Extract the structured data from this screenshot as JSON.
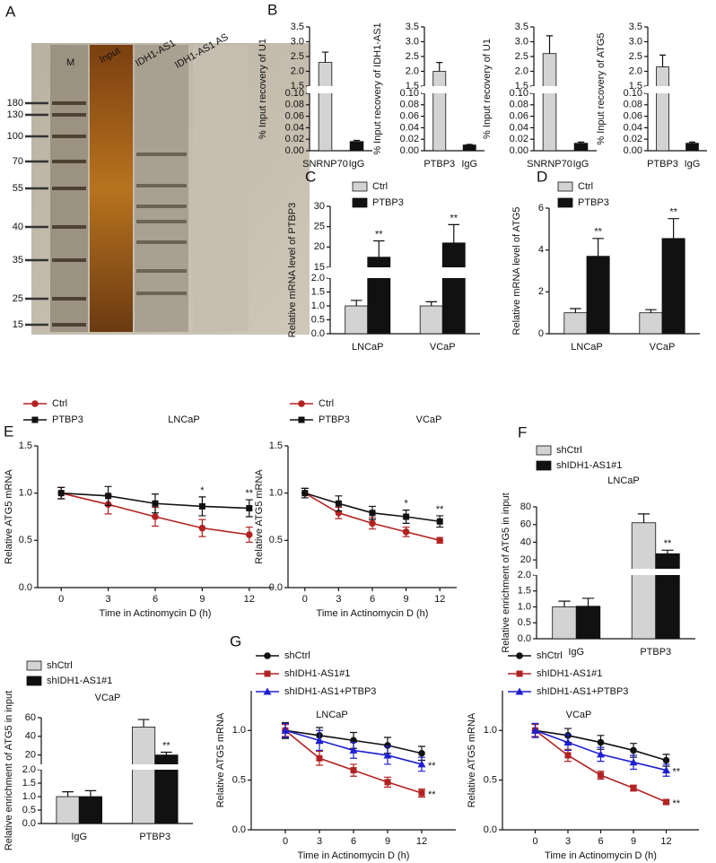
{
  "chart_data": [
    {
      "type": "gel",
      "panel": "A",
      "lanes": [
        "M",
        "Input",
        "IDH1-AS1",
        "IDH1-AS1 AS"
      ],
      "markers": [
        180,
        130,
        100,
        70,
        55,
        40,
        35,
        25,
        15
      ]
    },
    {
      "type": "bar",
      "panel": "B",
      "ylabel": "% Input recovery of U1",
      "categories": [
        "SNRNP70",
        "IgG"
      ],
      "values": [
        2.3,
        0.016
      ],
      "errors": [
        0.35,
        0.002
      ],
      "colors": [
        "#d3d3d3",
        "#111111"
      ],
      "ylim": [
        [
          0,
          0.1
        ],
        [
          1.5,
          3.5
        ]
      ],
      "yticks": [
        {
          "value": 0,
          "label": "0.00"
        },
        0.02,
        0.04,
        0.06,
        0.08,
        {
          "value": 0.1,
          "label": "0.10"
        },
        1.5,
        {
          "value": 2,
          "label": "2.0"
        },
        2.5,
        {
          "value": 3,
          "label": "3.0"
        },
        3.5
      ]
    },
    {
      "type": "bar",
      "ylabel": "% Input recovery of IDH1-AS1",
      "categories": [
        "PTBP3",
        "IgG"
      ],
      "values": [
        2.0,
        0.01
      ],
      "errors": [
        0.3,
        0.001
      ],
      "colors": [
        "#d3d3d3",
        "#111111"
      ],
      "ylim": [
        [
          0,
          0.1
        ],
        [
          1.5,
          3.5
        ]
      ],
      "yticks": [
        {
          "value": 0,
          "label": "0.00"
        },
        0.02,
        0.04,
        0.06,
        0.08,
        {
          "value": 0.1,
          "label": "0.10"
        },
        1.5,
        {
          "value": 2,
          "label": "2.0"
        },
        2.5,
        {
          "value": 3,
          "label": "3.0"
        },
        3.5
      ]
    },
    {
      "type": "bar",
      "ylabel": "% Input recovery of U1",
      "categories": [
        "SNRNP70",
        "IgG"
      ],
      "values": [
        2.6,
        0.013
      ],
      "errors": [
        0.6,
        0.002
      ],
      "colors": [
        "#d3d3d3",
        "#111111"
      ],
      "ylim": [
        [
          0,
          0.1
        ],
        [
          1.5,
          3.5
        ]
      ],
      "yticks": [
        {
          "value": 0,
          "label": "0.00"
        },
        0.02,
        0.04,
        0.06,
        0.08,
        {
          "value": 0.1,
          "label": "0.10"
        },
        1.5,
        {
          "value": 2,
          "label": "2.0"
        },
        2.5,
        {
          "value": 3,
          "label": "3.0"
        },
        3.5
      ]
    },
    {
      "type": "bar",
      "ylabel": "% Input recovery of ATG5",
      "categories": [
        "PTBP3",
        "IgG"
      ],
      "values": [
        2.15,
        0.013
      ],
      "errors": [
        0.4,
        0.002
      ],
      "colors": [
        "#d3d3d3",
        "#111111"
      ],
      "ylim": [
        [
          0,
          0.1
        ],
        [
          1.5,
          3.5
        ]
      ],
      "yticks": [
        {
          "value": 0,
          "label": "0.00"
        },
        0.02,
        0.04,
        0.06,
        0.08,
        {
          "value": 0.1,
          "label": "0.10"
        },
        1.5,
        {
          "value": 2,
          "label": "2.0"
        },
        2.5,
        {
          "value": 3,
          "label": "3.0"
        },
        3.5
      ]
    },
    {
      "type": "bar",
      "panel": "C",
      "ylabel": "Relative mRNA level of PTBP3",
      "categories": [
        "LNCaP",
        "VCaP"
      ],
      "series": [
        {
          "name": "Ctrl",
          "color": "#d3d3d3",
          "values": [
            1.0,
            1.0
          ],
          "errors": [
            0.2,
            0.15
          ]
        },
        {
          "name": "PTBP3",
          "color": "#111111",
          "values": [
            17.5,
            21
          ],
          "errors": [
            4,
            4.5
          ],
          "significance": [
            "**",
            "**"
          ]
        }
      ],
      "ylim": [
        [
          0,
          2
        ],
        [
          15,
          30
        ]
      ],
      "yticks": [
        {
          "value": 0,
          "label": "0.0"
        },
        0.5,
        {
          "value": 1,
          "label": "1.0"
        },
        1.5,
        {
          "value": 2,
          "label": "2.0"
        },
        15,
        20,
        25,
        30
      ]
    },
    {
      "type": "bar",
      "panel": "D",
      "ylabel": "Relative mRNA level of ATG5",
      "categories": [
        "LNCaP",
        "VCaP"
      ],
      "series": [
        {
          "name": "Ctrl",
          "color": "#d3d3d3",
          "values": [
            1.0,
            1.0
          ],
          "errors": [
            0.2,
            0.15
          ]
        },
        {
          "name": "PTBP3",
          "color": "#111111",
          "values": [
            3.7,
            4.55
          ],
          "errors": [
            0.85,
            0.95
          ],
          "significance": [
            "**",
            "**"
          ]
        }
      ],
      "ylim": [
        0,
        6
      ],
      "yticks": [
        0,
        2,
        4,
        6
      ]
    },
    {
      "type": "line",
      "panel": "E",
      "annotation": "LNCaP",
      "xlabel": "Time in Actinomycin D (h)",
      "ylabel": "Relative ATG5 mRNA",
      "x": [
        0,
        3,
        6,
        9,
        12
      ],
      "series": [
        {
          "name": "Ctrl",
          "color": "#b22222",
          "marker": "circle",
          "values": [
            1.0,
            0.88,
            0.75,
            0.63,
            0.56
          ],
          "errors": [
            0.06,
            0.1,
            0.1,
            0.09,
            0.08
          ]
        },
        {
          "name": "PTBP3",
          "color": "#111111",
          "marker": "square",
          "values": [
            1.0,
            0.97,
            0.89,
            0.86,
            0.84
          ],
          "errors": [
            0.06,
            0.1,
            0.1,
            0.1,
            0.09
          ],
          "significance": [
            null,
            null,
            null,
            "*",
            "**"
          ]
        }
      ],
      "xlim": [
        -1.5,
        13.5
      ],
      "xticks": [
        0,
        3,
        6,
        9,
        12
      ],
      "ylim": [
        0,
        1.5
      ],
      "yticks": [
        {
          "value": 0,
          "label": "0.0"
        },
        0.5,
        {
          "value": 1,
          "label": "1.0"
        },
        1.5
      ]
    },
    {
      "type": "line",
      "annotation": "VCaP",
      "xlabel": "Time in Actinomycin D (h)",
      "ylabel": "Relative ATG5 mRNA",
      "x": [
        0,
        3,
        6,
        9,
        12
      ],
      "series": [
        {
          "name": "Ctrl",
          "color": "#b22222",
          "marker": "circle",
          "values": [
            1.0,
            0.79,
            0.68,
            0.59,
            0.5
          ],
          "errors": [
            0.05,
            0.06,
            0.06,
            0.05,
            0.03
          ]
        },
        {
          "name": "PTBP3",
          "color": "#111111",
          "marker": "square",
          "values": [
            1.0,
            0.89,
            0.79,
            0.75,
            0.7
          ],
          "errors": [
            0.05,
            0.08,
            0.07,
            0.07,
            0.06
          ],
          "significance": [
            null,
            null,
            null,
            "*",
            "**"
          ]
        }
      ],
      "xlim": [
        -1.5,
        13.5
      ],
      "xticks": [
        0,
        3,
        6,
        9,
        12
      ],
      "ylim": [
        0,
        1.5
      ],
      "yticks": [
        {
          "value": 0,
          "label": "0.0"
        },
        0.5,
        {
          "value": 1,
          "label": "1.0"
        },
        1.5
      ]
    },
    {
      "type": "bar",
      "panel": "F",
      "annotation": "LNCaP",
      "ylabel": "Relative  enrichment of ATG5 in input",
      "categories": [
        "IgG",
        "PTBP3"
      ],
      "series": [
        {
          "name": "shCtrl",
          "color": "#d3d3d3",
          "values": [
            1.0,
            62
          ],
          "errors": [
            0.18,
            10
          ]
        },
        {
          "name": "shIDH1-AS1#1",
          "color": "#111111",
          "values": [
            1.02,
            27
          ],
          "errors": [
            0.25,
            4
          ],
          "significance": [
            null,
            "**"
          ]
        }
      ],
      "ylim": [
        [
          0,
          2
        ],
        [
          10,
          80
        ]
      ],
      "yticks": [
        {
          "value": 0,
          "label": "0.0"
        },
        0.5,
        {
          "value": 1,
          "label": "1.0"
        },
        1.5,
        {
          "value": 2,
          "label": "2.0"
        },
        20,
        40,
        60,
        80
      ]
    },
    {
      "type": "bar",
      "annotation": "VCaP",
      "ylabel": "Relative  enrichment of ATG5 in input",
      "categories": [
        "IgG",
        "PTBP3"
      ],
      "series": [
        {
          "name": "shCtrl",
          "color": "#d3d3d3",
          "values": [
            1.0,
            50
          ],
          "errors": [
            0.18,
            8
          ]
        },
        {
          "name": "shIDH1-AS1#1",
          "color": "#111111",
          "values": [
            1.0,
            20
          ],
          "errors": [
            0.22,
            3
          ],
          "significance": [
            null,
            "**"
          ]
        }
      ],
      "ylim": [
        [
          0,
          2
        ],
        [
          10,
          60
        ]
      ],
      "yticks": [
        {
          "value": 0,
          "label": "0.0"
        },
        0.5,
        {
          "value": 1,
          "label": "1.0"
        },
        1.5,
        {
          "value": 2,
          "label": "2.0"
        },
        20,
        40,
        60
      ]
    },
    {
      "type": "line",
      "panel": "G",
      "annotation": "LNCaP",
      "xlabel": "Time in Actinomycin D (h)",
      "ylabel": "Relative ATG5 mRNA",
      "x": [
        0,
        3,
        6,
        9,
        12
      ],
      "series": [
        {
          "name": "shCtrl",
          "color": "#111111",
          "marker": "circle",
          "values": [
            1.0,
            0.95,
            0.9,
            0.85,
            0.77
          ],
          "errors": [
            0.08,
            0.08,
            0.08,
            0.08,
            0.07
          ]
        },
        {
          "name": "shIDH1-AS1#1",
          "color": "#b22222",
          "marker": "square",
          "values": [
            1.0,
            0.72,
            0.6,
            0.48,
            0.37
          ],
          "errors": [
            0.06,
            0.07,
            0.06,
            0.05,
            0.04
          ],
          "significance": [
            null,
            null,
            null,
            null,
            "**"
          ]
        },
        {
          "name": "shIDH1-AS1+PTBP3",
          "color": "#1f1fd0",
          "marker": "triangle",
          "values": [
            1.0,
            0.9,
            0.8,
            0.75,
            0.66
          ],
          "errors": [
            0.07,
            0.1,
            0.08,
            0.09,
            0.07
          ],
          "significance": [
            null,
            null,
            null,
            null,
            "**"
          ]
        }
      ],
      "xlim": [
        -3,
        15
      ],
      "xticks": [
        0,
        3,
        6,
        9,
        12
      ],
      "ylim": [
        0,
        1.4
      ],
      "yticks": [
        {
          "value": 0,
          "label": "0.0"
        },
        0.5,
        {
          "value": 1,
          "label": "1.0"
        }
      ]
    },
    {
      "type": "line",
      "annotation": "VCaP",
      "xlabel": "Time in Actinomycin D (h)",
      "ylabel": "Relative ATG5 mRNA",
      "x": [
        0,
        3,
        6,
        9,
        12
      ],
      "series": [
        {
          "name": "shCtrl",
          "color": "#111111",
          "marker": "circle",
          "values": [
            1.0,
            0.95,
            0.88,
            0.8,
            0.7
          ],
          "errors": [
            0.07,
            0.07,
            0.07,
            0.07,
            0.06
          ]
        },
        {
          "name": "shIDH1-AS1#1",
          "color": "#b22222",
          "marker": "square",
          "values": [
            1.0,
            0.75,
            0.55,
            0.42,
            0.28
          ],
          "errors": [
            0.06,
            0.06,
            0.04,
            0.03,
            0.02
          ],
          "significance": [
            null,
            null,
            null,
            null,
            "**"
          ]
        },
        {
          "name": "shIDH1-AS1+PTBP3",
          "color": "#1f1fd0",
          "marker": "triangle",
          "values": [
            1.0,
            0.88,
            0.76,
            0.68,
            0.6
          ],
          "errors": [
            0.07,
            0.08,
            0.07,
            0.07,
            0.06
          ],
          "significance": [
            null,
            null,
            null,
            null,
            "**"
          ]
        }
      ],
      "xlim": [
        -3,
        15
      ],
      "xticks": [
        0,
        3,
        6,
        9,
        12
      ],
      "ylim": [
        0,
        1.4
      ],
      "yticks": [
        {
          "value": 0,
          "label": "0.0"
        },
        0.5,
        {
          "value": 1,
          "label": "1.0"
        }
      ]
    }
  ]
}
